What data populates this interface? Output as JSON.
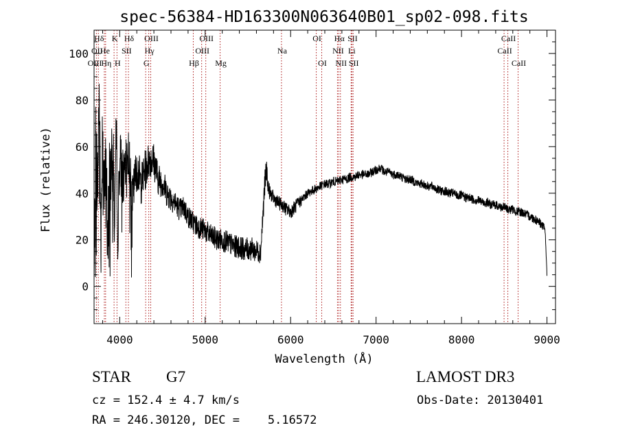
{
  "chart_data": {
    "type": "line",
    "title": "spec-56384-HD163300N063640B01_sp02-098.fits",
    "xlabel": "Wavelength (Å)",
    "ylabel": "Flux (relative)",
    "xlim": [
      3700,
      9100
    ],
    "ylim": [
      -16,
      110
    ],
    "xticks": [
      4000,
      5000,
      6000,
      7000,
      8000,
      9000
    ],
    "yticks": [
      0,
      20,
      40,
      60,
      80,
      100
    ],
    "line_color": "#000000",
    "marker_color": "#aa1111",
    "grid": false,
    "series": [
      {
        "x": [
          3700,
          3720,
          3740,
          3760,
          3780,
          3800,
          3820,
          3840,
          3860,
          3880,
          3900,
          3920,
          3940,
          3960,
          3980,
          4000,
          4050,
          4100,
          4150,
          4200,
          4250,
          4300,
          4350,
          4400,
          4450,
          4500,
          4550,
          4600,
          4650,
          4700,
          4750,
          4800,
          4850,
          4900,
          4950,
          5000,
          5050,
          5100,
          5150,
          5200,
          5250,
          5300,
          5350,
          5400,
          5450,
          5500,
          5550,
          5600,
          5650,
          5700,
          5720,
          5740,
          5760,
          5800,
          5850,
          5900,
          5950,
          6000,
          6050,
          6100,
          6150,
          6200,
          6250,
          6300,
          6350,
          6400,
          6450,
          6500,
          6550,
          6600,
          6650,
          6700,
          6750,
          6800,
          6850,
          6900,
          6950,
          7000,
          7050,
          7100,
          7150,
          7200,
          7250,
          7300,
          7350,
          7400,
          7450,
          7500,
          7550,
          7600,
          7650,
          7700,
          7750,
          7800,
          7850,
          7900,
          7950,
          8000,
          8050,
          8100,
          8150,
          8200,
          8250,
          8300,
          8350,
          8400,
          8450,
          8500,
          8550,
          8600,
          8650,
          8700,
          8750,
          8800,
          8850,
          8900,
          8950,
          8980,
          9000
        ],
        "y": [
          2,
          70,
          40,
          85,
          20,
          75,
          35,
          55,
          15,
          50,
          48,
          60,
          30,
          65,
          25,
          55,
          45,
          58,
          38,
          52,
          44,
          50,
          55,
          54,
          46,
          45,
          40,
          38,
          36,
          33,
          34,
          30,
          28,
          26,
          25,
          24,
          22,
          21,
          20,
          20,
          19,
          18,
          17,
          17,
          16,
          16,
          16,
          15,
          15,
          45,
          50,
          42,
          40,
          38,
          36,
          35,
          33,
          32,
          34,
          36,
          38,
          40,
          41,
          42,
          43,
          44,
          44,
          45,
          45,
          46,
          46,
          47,
          47,
          48,
          48,
          48,
          49,
          50,
          51,
          49,
          49,
          48,
          48,
          47,
          46,
          46,
          45,
          44,
          44,
          43,
          43,
          42,
          41,
          41,
          40,
          40,
          39,
          39,
          38,
          38,
          37,
          37,
          36,
          36,
          35,
          35,
          34,
          34,
          33,
          33,
          32,
          32,
          31,
          30,
          29,
          28,
          26,
          24,
          4
        ],
        "noise": [
          18,
          18,
          18,
          18,
          18,
          18,
          18,
          18,
          18,
          18,
          16,
          16,
          16,
          16,
          14,
          14,
          12,
          12,
          10,
          10,
          9,
          9,
          8,
          8,
          7,
          7,
          6,
          6,
          5,
          5,
          5,
          5,
          5,
          5,
          5,
          5,
          5,
          5,
          5,
          5,
          5,
          5,
          5,
          5,
          5,
          5,
          5,
          5,
          5,
          6,
          5,
          4,
          3,
          3,
          3,
          3,
          3,
          3,
          3,
          3,
          2,
          2,
          2,
          2,
          2,
          2,
          2,
          2,
          2,
          2,
          2,
          2,
          2,
          2,
          2,
          2,
          2,
          2,
          2,
          2,
          2,
          2,
          2,
          2,
          2,
          2,
          2,
          2,
          2,
          2,
          2,
          2,
          2,
          2,
          2,
          2,
          2,
          2,
          2,
          2,
          2,
          2,
          2,
          2,
          2,
          2,
          2,
          2,
          2,
          2,
          2,
          2,
          2,
          2,
          2,
          2,
          2,
          2,
          1
        ]
      }
    ],
    "line_markers": [
      {
        "label": "Hδ",
        "wavelength": 3750,
        "row": 0
      },
      {
        "label": "K",
        "wavelength": 3934,
        "row": 0
      },
      {
        "label": "Hδ",
        "wavelength": 4102,
        "row": 0
      },
      {
        "label": "OIII",
        "wavelength": 4363,
        "row": 0
      },
      {
        "label": "OIII",
        "wavelength": 5007,
        "row": 0
      },
      {
        "label": "OI",
        "wavelength": 6300,
        "row": 0
      },
      {
        "label": "Hα",
        "wavelength": 6563,
        "row": 0
      },
      {
        "label": "SII",
        "wavelength": 6717,
        "row": 0
      },
      {
        "label": "CaII",
        "wavelength": 8542,
        "row": 0
      },
      {
        "label": "OII",
        "wavelength": 3727,
        "row": 1
      },
      {
        "label": "He",
        "wavelength": 3820,
        "row": 1
      },
      {
        "label": "SII",
        "wavelength": 4072,
        "row": 1
      },
      {
        "label": "Hγ",
        "wavelength": 4340,
        "row": 1
      },
      {
        "label": "OIII",
        "wavelength": 4959,
        "row": 1
      },
      {
        "label": "Na",
        "wavelength": 5893,
        "row": 1
      },
      {
        "label": "NII",
        "wavelength": 6548,
        "row": 1
      },
      {
        "label": "Li",
        "wavelength": 6708,
        "row": 1
      },
      {
        "label": "CaII",
        "wavelength": 8498,
        "row": 1
      },
      {
        "label": "OIII",
        "wavelength": 3700,
        "row": 2
      },
      {
        "label": "Hη",
        "wavelength": 3835,
        "row": 2
      },
      {
        "label": "H",
        "wavelength": 3968,
        "row": 2
      },
      {
        "label": "G",
        "wavelength": 4304,
        "row": 2
      },
      {
        "label": "Hβ",
        "wavelength": 4861,
        "row": 2
      },
      {
        "label": "Mg",
        "wavelength": 5175,
        "row": 2
      },
      {
        "label": "OI",
        "wavelength": 6364,
        "row": 2
      },
      {
        "label": "NII",
        "wavelength": 6583,
        "row": 2
      },
      {
        "label": "SII",
        "wavelength": 6731,
        "row": 2
      },
      {
        "label": "CaII",
        "wavelength": 8662,
        "row": 2
      }
    ]
  },
  "info": {
    "object_type": "STAR",
    "subclass": "G7",
    "survey": "LAMOST DR3",
    "redshift": "cz = 152.4 ± 4.7 km/s",
    "obs_date": "Obs-Date: 20130401",
    "coords": "RA = 246.30120, DEC =    5.16572"
  }
}
